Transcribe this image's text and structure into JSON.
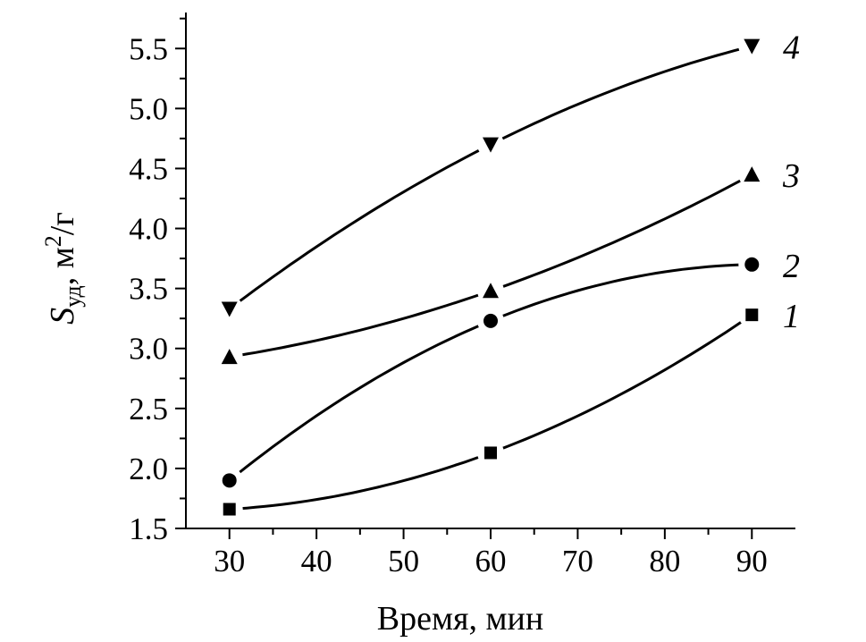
{
  "chart_data": {
    "type": "line",
    "xlabel": "Время, мин",
    "ylabel_main": "S",
    "ylabel_sub": "уд",
    "ylabel_rest": ", м",
    "ylabel_sup": "2",
    "ylabel_tail": "/г",
    "xlim": [
      25,
      95
    ],
    "ylim": [
      1.5,
      5.8
    ],
    "x_ticks": [
      "30",
      "40",
      "50",
      "60",
      "70",
      "80",
      "90"
    ],
    "y_ticks": [
      "1.5",
      "2.0",
      "2.5",
      "3.0",
      "3.5",
      "4.0",
      "4.5",
      "5.0",
      "5.5"
    ],
    "series": [
      {
        "label": "1",
        "marker": "square",
        "x": [
          30,
          60,
          90
        ],
        "y": [
          1.66,
          2.13,
          3.28
        ]
      },
      {
        "label": "2",
        "marker": "circle",
        "x": [
          30,
          60,
          90
        ],
        "y": [
          1.9,
          3.23,
          3.7
        ]
      },
      {
        "label": "3",
        "marker": "triangle-up",
        "x": [
          30,
          60,
          90
        ],
        "y": [
          2.93,
          3.48,
          4.45
        ]
      },
      {
        "label": "4",
        "marker": "triangle-down",
        "x": [
          30,
          60,
          90
        ],
        "y": [
          3.33,
          4.7,
          5.52
        ]
      }
    ]
  }
}
